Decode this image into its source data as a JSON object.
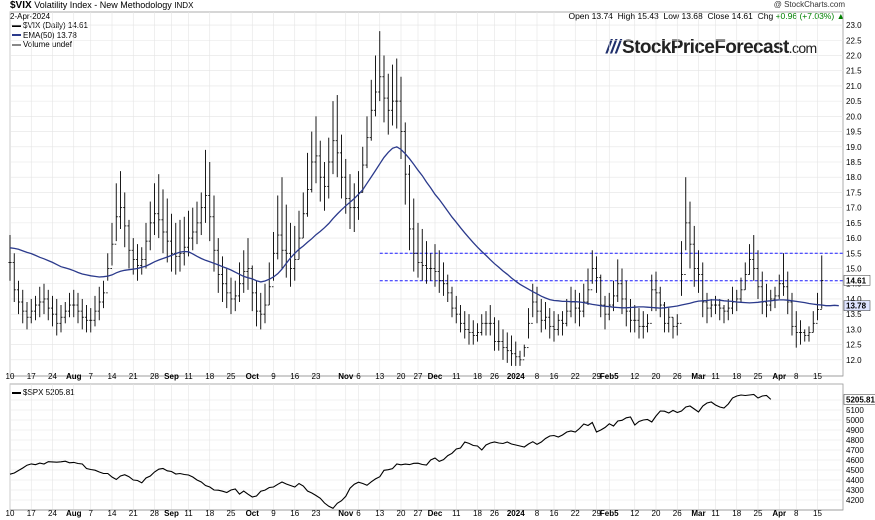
{
  "header": {
    "symbol": "$VIX",
    "name": "Volatility Index - New Methodology",
    "exchange": "INDX",
    "date": "2-Apr-2024",
    "copyright": "@ StockCharts.com",
    "open_label": "Open",
    "open": "13.74",
    "high_label": "High",
    "high": "15.43",
    "low_label": "Low",
    "low": "13.68",
    "close_label": "Close",
    "close": "14.61",
    "chg_label": "Chg",
    "chg": "+0.96 (+7.03%)",
    "chg_arrow": "▲"
  },
  "legend": {
    "vix": "$VIX (Daily) 14.61",
    "ema": "EMA(50) 13.78",
    "volume": "Volume undef",
    "spx": "$SPX 5205.81"
  },
  "logo": {
    "text": "StockPriceForecast",
    "suffix": ".com"
  },
  "colors": {
    "ema": "#2b3a8c",
    "dash": "#1a1aff",
    "bars": "#000000",
    "grid": "#e4e4e4",
    "spx": "#000000",
    "up": "#008000"
  },
  "chart_data": [
    {
      "type": "ohlc",
      "title": "$VIX (Daily) 14.61",
      "ylim": [
        11.6,
        23.1
      ],
      "yticks": [
        12.0,
        12.5,
        13.0,
        13.5,
        14.0,
        14.5,
        15.0,
        15.5,
        16.0,
        16.5,
        17.0,
        17.5,
        18.0,
        18.5,
        19.0,
        19.5,
        20.0,
        20.5,
        21.0,
        21.5,
        22.0,
        22.5,
        23.0
      ],
      "x_start_index": 0,
      "x_end_index": 196,
      "highs": [
        16.1,
        15.5,
        14.6,
        14.3,
        13.9,
        14.0,
        14.1,
        14.4,
        14.5,
        14.3,
        14.1,
        14.0,
        13.8,
        13.9,
        14.2,
        14.3,
        14.2,
        14.0,
        13.8,
        13.7,
        14.1,
        14.4,
        14.6,
        15.5,
        16.5,
        17.8,
        18.2,
        17.5,
        16.6,
        16.0,
        15.8,
        15.7,
        16.5,
        17.2,
        17.8,
        18.1,
        17.6,
        17.3,
        16.8,
        16.5,
        16.6,
        16.7,
        16.9,
        17.0,
        17.2,
        17.5,
        18.9,
        18.5,
        17.4,
        16.0,
        15.4,
        15.0,
        14.7,
        14.6,
        15.2,
        15.6,
        16.0,
        15.1,
        14.6,
        14.2,
        14.5,
        15.2,
        16.2,
        17.4,
        18.0,
        17.1,
        16.5,
        16.4,
        16.9,
        17.5,
        18.8,
        19.5,
        20.0,
        19.2,
        18.5,
        19.3,
        20.5,
        20.7,
        19.4,
        18.6,
        18.1,
        17.8,
        18.2,
        19.0,
        20.0,
        21.2,
        22.0,
        22.8,
        22.0,
        21.4,
        21.7,
        21.9,
        21.3,
        19.8,
        18.4,
        17.3,
        16.5,
        16.3,
        15.9,
        15.5,
        15.8,
        15.6,
        15.2,
        14.8,
        14.4,
        14.1,
        13.8,
        13.6,
        13.5,
        13.3,
        13.2,
        13.5,
        13.6,
        13.8,
        13.4,
        13.3,
        13.0,
        12.9,
        12.8,
        12.6,
        12.3,
        12.5,
        13.7,
        14.5,
        14.4,
        14.0,
        13.9,
        13.7,
        13.6,
        13.5,
        13.6,
        14.0,
        14.4,
        14.3,
        14.2,
        14.5,
        15.0,
        15.6,
        15.4,
        14.8,
        14.1,
        14.2,
        14.6,
        15.3,
        15.0,
        14.6,
        14.0,
        13.8,
        13.7,
        13.6,
        13.5,
        14.8,
        14.9,
        14.4,
        13.9,
        13.7,
        13.4,
        13.5,
        15.9,
        18.0,
        17.2,
        16.4,
        15.6,
        15.2,
        14.2,
        14.0,
        14.1,
        14.0,
        13.8,
        14.0,
        14.4,
        14.3,
        14.7,
        15.2,
        15.8,
        16.1,
        15.6,
        14.9,
        14.5,
        14.3,
        14.4,
        14.8,
        15.5,
        14.9,
        14.2,
        13.6,
        13.3,
        13.0,
        13.1,
        13.6,
        14.2,
        15.43
      ],
      "lows": [
        14.6,
        13.9,
        13.5,
        13.2,
        13.0,
        13.2,
        13.3,
        13.4,
        13.5,
        13.3,
        13.1,
        12.8,
        12.9,
        13.2,
        13.4,
        13.4,
        13.2,
        13.0,
        12.9,
        12.9,
        13.1,
        13.3,
        13.7,
        14.6,
        15.1,
        15.9,
        16.3,
        15.7,
        15.0,
        14.8,
        14.6,
        14.8,
        15.0,
        15.6,
        16.1,
        16.0,
        15.5,
        15.2,
        14.9,
        14.8,
        14.9,
        15.1,
        15.4,
        15.6,
        15.8,
        16.1,
        16.5,
        15.9,
        14.9,
        14.2,
        13.9,
        13.7,
        13.5,
        13.6,
        13.9,
        14.2,
        14.3,
        13.6,
        13.1,
        13.0,
        13.2,
        13.8,
        14.6,
        15.3,
        15.0,
        14.7,
        14.4,
        14.6,
        15.3,
        16.0,
        16.7,
        17.5,
        17.8,
        17.2,
        16.9,
        17.3,
        18.1,
        18.0,
        17.3,
        16.8,
        16.3,
        16.2,
        16.6,
        17.5,
        18.3,
        19.2,
        20.0,
        20.5,
        19.8,
        19.4,
        19.7,
        19.6,
        18.6,
        17.1,
        15.6,
        14.9,
        14.7,
        14.6,
        14.5,
        14.6,
        14.4,
        14.2,
        14.1,
        13.9,
        13.4,
        13.2,
        12.9,
        12.7,
        12.5,
        12.5,
        12.6,
        12.8,
        12.8,
        12.8,
        12.3,
        12.3,
        12.0,
        11.9,
        11.8,
        11.8,
        11.8,
        12.1,
        12.7,
        13.4,
        13.2,
        12.9,
        13.0,
        12.7,
        12.6,
        12.8,
        12.8,
        13.1,
        13.4,
        13.2,
        13.1,
        13.4,
        13.8,
        14.5,
        14.2,
        13.4,
        13.0,
        13.3,
        13.6,
        13.9,
        13.5,
        13.1,
        12.9,
        12.9,
        12.7,
        12.7,
        12.9,
        13.6,
        13.6,
        13.4,
        12.9,
        12.9,
        12.7,
        12.8,
        14.1,
        15.6,
        15.0,
        14.4,
        14.2,
        13.4,
        13.2,
        13.4,
        13.5,
        13.3,
        13.2,
        13.3,
        13.5,
        13.6,
        13.9,
        14.3,
        14.8,
        14.6,
        14.0,
        13.5,
        13.4,
        13.6,
        13.7,
        14.0,
        14.1,
        13.5,
        12.8,
        12.4,
        12.5,
        12.6,
        12.6,
        12.9,
        13.3,
        13.68
      ],
      "closes": [
        15.2,
        14.3,
        13.9,
        13.6,
        13.4,
        13.6,
        13.8,
        13.9,
        14.0,
        13.7,
        13.5,
        13.2,
        13.4,
        13.6,
        13.8,
        13.8,
        13.6,
        13.4,
        13.3,
        13.3,
        13.6,
        13.9,
        14.2,
        15.0,
        15.8,
        16.7,
        17.0,
        16.4,
        15.6,
        15.3,
        15.1,
        15.3,
        15.9,
        16.5,
        16.8,
        16.6,
        16.2,
        15.9,
        15.5,
        15.4,
        15.5,
        15.7,
        16.0,
        16.2,
        16.5,
        17.0,
        17.4,
        16.7,
        15.6,
        14.8,
        14.5,
        14.2,
        14.0,
        14.1,
        14.5,
        14.9,
        15.0,
        14.2,
        13.6,
        13.5,
        13.8,
        14.4,
        15.5,
        16.1,
        15.6,
        15.5,
        15.0,
        15.3,
        16.0,
        16.8,
        17.6,
        18.5,
        18.7,
        18.0,
        17.7,
        18.5,
        19.2,
        18.8,
        18.0,
        17.3,
        17.0,
        17.0,
        17.5,
        18.4,
        19.3,
        20.2,
        20.8,
        21.3,
        20.6,
        20.2,
        20.5,
        20.5,
        19.5,
        18.1,
        16.3,
        15.5,
        15.2,
        15.1,
        15.0,
        15.0,
        14.9,
        14.6,
        14.5,
        14.2,
        13.7,
        13.5,
        13.2,
        13.0,
        12.9,
        12.8,
        12.9,
        13.2,
        13.2,
        13.2,
        12.6,
        12.6,
        12.4,
        12.3,
        12.2,
        12.1,
        12.0,
        12.4,
        13.2,
        13.9,
        13.6,
        13.3,
        13.4,
        13.1,
        13.0,
        13.3,
        13.2,
        13.6,
        13.9,
        13.7,
        13.6,
        13.9,
        14.3,
        15.0,
        14.7,
        13.8,
        13.5,
        13.8,
        14.1,
        14.5,
        14.0,
        13.6,
        13.3,
        13.3,
        13.1,
        13.1,
        13.2,
        14.3,
        14.2,
        13.8,
        13.2,
        13.4,
        13.1,
        13.2,
        14.8,
        16.5,
        15.8,
        15.0,
        14.8,
        13.9,
        13.7,
        13.8,
        13.8,
        13.7,
        13.6,
        13.7,
        13.9,
        14.0,
        14.3,
        14.8,
        15.3,
        15.0,
        14.4,
        13.9,
        13.8,
        14.0,
        14.1,
        14.5,
        14.4,
        13.9,
        13.1,
        12.9,
        12.9,
        12.8,
        12.9,
        13.2,
        13.65,
        14.61
      ],
      "ema_50": [
        15.68,
        15.66,
        15.63,
        15.58,
        15.53,
        15.49,
        15.43,
        15.37,
        15.32,
        15.26,
        15.2,
        15.13,
        15.06,
        15.02,
        14.98,
        14.93,
        14.87,
        14.82,
        14.79,
        14.76,
        14.74,
        14.72,
        14.73,
        14.75,
        14.79,
        14.86,
        14.91,
        14.94,
        14.96,
        14.98,
        15.0,
        15.04,
        15.08,
        15.15,
        15.22,
        15.28,
        15.33,
        15.38,
        15.43,
        15.49,
        15.54,
        15.56,
        15.55,
        15.48,
        15.4,
        15.33,
        15.27,
        15.22,
        15.17,
        15.12,
        15.06,
        15.01,
        14.95,
        14.88,
        14.81,
        14.74,
        14.7,
        14.66,
        14.6,
        14.56,
        14.59,
        14.65,
        14.72,
        14.83,
        14.98,
        15.17,
        15.35,
        15.5,
        15.63,
        15.74,
        15.86,
        15.98,
        16.11,
        16.22,
        16.34,
        16.48,
        16.64,
        16.79,
        16.93,
        17.06,
        17.18,
        17.3,
        17.44,
        17.59,
        17.8,
        18.01,
        18.22,
        18.44,
        18.65,
        18.82,
        18.95,
        19.0,
        18.91,
        18.77,
        18.61,
        18.42,
        18.23,
        18.05,
        17.84,
        17.65,
        17.44,
        17.27,
        17.08,
        16.88,
        16.69,
        16.52,
        16.34,
        16.17,
        16.01,
        15.85,
        15.7,
        15.56,
        15.43,
        15.29,
        15.16,
        15.04,
        14.92,
        14.81,
        14.69,
        14.58,
        14.48,
        14.4,
        14.32,
        14.24,
        14.17,
        14.09,
        14.03,
        13.98,
        13.95,
        13.94,
        13.92,
        13.92,
        13.91,
        13.91,
        13.9,
        13.88,
        13.85,
        13.82,
        13.8,
        13.78,
        13.76,
        13.75,
        13.73,
        13.72,
        13.71,
        13.71,
        13.72,
        13.73,
        13.74,
        13.74,
        13.73,
        13.72,
        13.71,
        13.7,
        13.71,
        13.73,
        13.75,
        13.77,
        13.8,
        13.83,
        13.86,
        13.9,
        13.93,
        13.94,
        13.95,
        13.97,
        13.97,
        13.96,
        13.94,
        13.93,
        13.92,
        13.9,
        13.89,
        13.88,
        13.87,
        13.88,
        13.89,
        13.91,
        13.93,
        13.94,
        13.96,
        13.97,
        13.97,
        13.96,
        13.94,
        13.92,
        13.9,
        13.88,
        13.85,
        13.83,
        13.81,
        13.8,
        13.78,
        13.78,
        13.79,
        13.78
      ],
      "resistance_lines": [
        15.5,
        14.6
      ],
      "last_value_label": "14.61",
      "ema_value_label": "13.78",
      "xlabels": [
        {
          "i": 0,
          "t": "10"
        },
        {
          "i": 5,
          "t": "17"
        },
        {
          "i": 10,
          "t": "24"
        },
        {
          "i": 15,
          "t": "Aug"
        },
        {
          "i": 19,
          "t": "7"
        },
        {
          "i": 24,
          "t": "14"
        },
        {
          "i": 29,
          "t": "21"
        },
        {
          "i": 34,
          "t": "28"
        },
        {
          "i": 38,
          "t": "Sep"
        },
        {
          "i": 42,
          "t": "11"
        },
        {
          "i": 47,
          "t": "18"
        },
        {
          "i": 52,
          "t": "25"
        },
        {
          "i": 57,
          "t": "Oct"
        },
        {
          "i": 62,
          "t": "9"
        },
        {
          "i": 67,
          "t": "16"
        },
        {
          "i": 72,
          "t": "23"
        },
        {
          "i": 79,
          "t": "Nov"
        },
        {
          "i": 82,
          "t": "6"
        },
        {
          "i": 87,
          "t": "13"
        },
        {
          "i": 92,
          "t": "20"
        },
        {
          "i": 96,
          "t": "27"
        },
        {
          "i": 100,
          "t": "Dec"
        },
        {
          "i": 105,
          "t": "11"
        },
        {
          "i": 110,
          "t": "18"
        },
        {
          "i": 114,
          "t": "26"
        },
        {
          "i": 119,
          "t": "2024"
        },
        {
          "i": 124,
          "t": "8"
        },
        {
          "i": 128,
          "t": "16"
        },
        {
          "i": 133,
          "t": "22"
        },
        {
          "i": 138,
          "t": "29"
        },
        {
          "i": 141,
          "t": "Feb5"
        },
        {
          "i": 147,
          "t": "12"
        },
        {
          "i": 152,
          "t": "20"
        },
        {
          "i": 157,
          "t": "26"
        },
        {
          "i": 162,
          "t": "Mar"
        },
        {
          "i": 166,
          "t": "11"
        },
        {
          "i": 171,
          "t": "18"
        },
        {
          "i": 176,
          "t": "25"
        },
        {
          "i": 181,
          "t": "Apr"
        },
        {
          "i": 185,
          "t": "8"
        },
        {
          "i": 190,
          "t": "15"
        }
      ]
    },
    {
      "type": "line",
      "title": "$SPX 5205.81",
      "ylim": [
        4120,
        5280
      ],
      "yticks": [
        4200,
        4300,
        4400,
        4500,
        4600,
        4700,
        4800,
        4900,
        5000,
        5100,
        5200
      ],
      "x_start_index": 0,
      "x_end_index": 181,
      "values": [
        4458,
        4470,
        4495,
        4520,
        4548,
        4561,
        4553,
        4569,
        4560,
        4583,
        4581,
        4578,
        4582,
        4588,
        4572,
        4576,
        4565,
        4560,
        4515,
        4505,
        4498,
        4480,
        4465,
        4465,
        4430,
        4405,
        4440,
        4453,
        4433,
        4400,
        4395,
        4372,
        4420,
        4440,
        4480,
        4508,
        4515,
        4492,
        4485,
        4460,
        4465,
        4455,
        4450,
        4430,
        4400,
        4380,
        4345,
        4330,
        4300,
        4298,
        4288,
        4275,
        4300,
        4310,
        4259,
        4290,
        4258,
        4230,
        4240,
        4288,
        4299,
        4325,
        4330,
        4357,
        4380,
        4360,
        4345,
        4330,
        4365,
        4340,
        4290,
        4270,
        4245,
        4217,
        4170,
        4137,
        4117,
        4167,
        4193,
        4237,
        4318,
        4358,
        4378,
        4365,
        4347,
        4382,
        4411,
        4433,
        4497,
        4503,
        4514,
        4560,
        4552,
        4559,
        4554,
        4567,
        4568,
        4555,
        4550,
        4600,
        4620,
        4586,
        4604,
        4644,
        4667,
        4710,
        4720,
        4780,
        4766,
        4745,
        4740,
        4700,
        4750,
        4770,
        4780,
        4770,
        4765,
        4780,
        4760,
        4750,
        4740,
        4730,
        4760,
        4783,
        4756,
        4780,
        4815,
        4840,
        4845,
        4830,
        4850,
        4880,
        4890,
        4880,
        4915,
        4960,
        4945,
        4975,
        4880,
        4900,
        4925,
        4962,
        4940,
        4990,
        4997,
        5022,
        5030,
        4950,
        4985,
        5000,
        5005,
        4980,
        5040,
        5090,
        5088,
        5070,
        5096,
        5075,
        5090,
        5130,
        5140,
        5110,
        5080,
        5140,
        5170,
        5180,
        5150,
        5130,
        5120,
        5160,
        5220,
        5240,
        5250,
        5245,
        5250,
        5255,
        5220,
        5240,
        5245,
        5205.81
      ],
      "value_label": "5205.81",
      "xlabels_same_as_vix": true
    }
  ]
}
